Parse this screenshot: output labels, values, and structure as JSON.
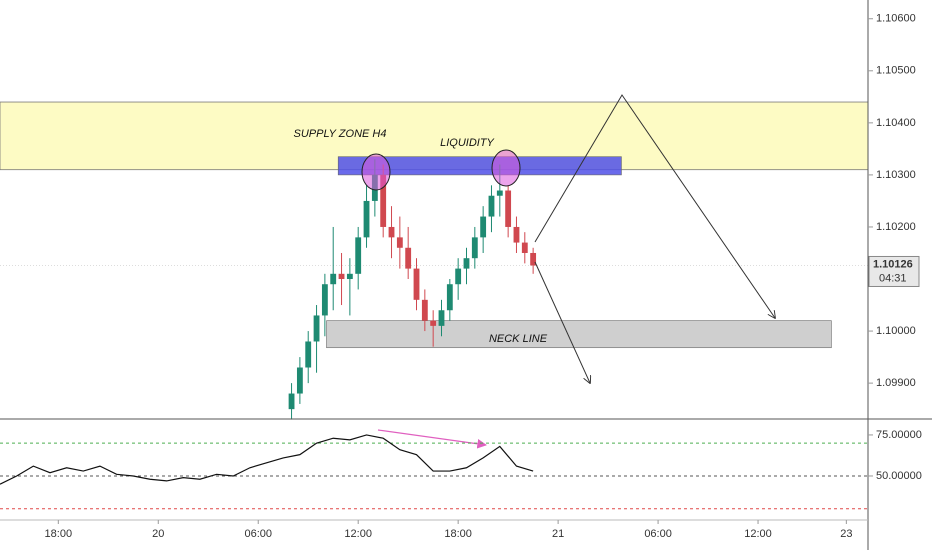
{
  "chart_data": [
    {
      "type": "candlestick",
      "x": [
        8,
        8.5,
        9,
        9.5,
        10,
        10.5,
        11,
        11.5,
        12,
        12.5,
        13,
        13.5,
        14,
        14.5,
        15,
        15.5,
        16,
        16.5,
        17,
        17.5,
        18,
        18.5,
        19,
        19.5,
        20,
        20.5,
        21,
        21.5,
        22,
        22.5
      ],
      "open": [
        1.0985,
        1.0988,
        1.0993,
        1.0998,
        1.1003,
        1.1009,
        1.1011,
        1.101,
        1.1011,
        1.1018,
        1.1025,
        1.103,
        1.102,
        1.1018,
        1.1016,
        1.1012,
        1.1006,
        1.1002,
        1.1001,
        1.1004,
        1.1009,
        1.1012,
        1.1014,
        1.1018,
        1.1022,
        1.1026,
        1.1027,
        1.102,
        1.1017,
        1.1015
      ],
      "high": [
        1.099,
        1.0995,
        1.1,
        1.1005,
        1.1011,
        1.102,
        1.1015,
        1.1014,
        1.102,
        1.1028,
        1.1033,
        1.1032,
        1.1024,
        1.1022,
        1.102,
        1.1014,
        1.1008,
        1.1004,
        1.1006,
        1.101,
        1.1014,
        1.1016,
        1.102,
        1.1024,
        1.1028,
        1.1032,
        1.1028,
        1.1022,
        1.1019,
        1.1016
      ],
      "low": [
        1.0983,
        1.0986,
        1.099,
        1.0992,
        1.0999,
        1.1004,
        1.1005,
        1.1003,
        1.1008,
        1.1016,
        1.1022,
        1.1018,
        1.1014,
        1.1012,
        1.101,
        1.1004,
        1.1,
        1.0997,
        1.0999,
        1.1002,
        1.1006,
        1.1009,
        1.1012,
        1.1015,
        1.1019,
        1.1022,
        1.1018,
        1.1015,
        1.1013,
        1.1011
      ],
      "close": [
        1.0988,
        1.0993,
        1.0998,
        1.1003,
        1.1009,
        1.1011,
        1.101,
        1.1011,
        1.1018,
        1.1025,
        1.103,
        1.102,
        1.1018,
        1.1016,
        1.1012,
        1.1006,
        1.1002,
        1.1001,
        1.1004,
        1.1009,
        1.1012,
        1.1014,
        1.1018,
        1.1022,
        1.1026,
        1.1027,
        1.102,
        1.1017,
        1.1015,
        1.10126
      ],
      "up_color": "#1e8a72",
      "down_color": "#d0484f",
      "xlim": [
        -9.5,
        42.6
      ],
      "xticks": [
        {
          "value": -6,
          "label": "18:00"
        },
        {
          "value": 0,
          "label": "20"
        },
        {
          "value": 6,
          "label": "06:00"
        },
        {
          "value": 12,
          "label": "12:00"
        },
        {
          "value": 18,
          "label": "18:00"
        },
        {
          "value": 24,
          "label": "21"
        },
        {
          "value": 30,
          "label": "06:00"
        },
        {
          "value": 36,
          "label": "12:00"
        },
        {
          "value": 41.3,
          "label": "23"
        }
      ],
      "ylim": [
        1.09833,
        1.10636
      ],
      "yticks": [
        {
          "value": 1.099,
          "label": "1.09900"
        },
        {
          "value": 1.1,
          "label": "1.10000"
        },
        {
          "value": 1.102,
          "label": "1.10200"
        },
        {
          "value": 1.103,
          "label": "1.10300"
        },
        {
          "value": 1.104,
          "label": "1.10400"
        },
        {
          "value": 1.105,
          "label": "1.10500"
        },
        {
          "value": 1.106,
          "label": "1.10600"
        }
      ],
      "countdown": "04:31",
      "zones": [
        {
          "text": "SUPPLY ZONE H4",
          "range": [
            1.1031,
            1.1044
          ],
          "color": "#fdfbc4"
        },
        {
          "text": "LIQUIDITY",
          "range": [
            1.103,
            1.10335
          ],
          "xrange": [
            10.8,
            27.8
          ],
          "color": "#5050e8"
        },
        {
          "text": "NECK LINE",
          "range": [
            1.09968,
            1.1002
          ],
          "xrange": [
            10.1,
            40.4
          ],
          "color": "#cfcfcf"
        }
      ]
    },
    {
      "type": "line",
      "x": [
        -9.5,
        -8.5,
        -7.5,
        -6.5,
        -5.5,
        -4.5,
        -3.5,
        -2.5,
        -1.5,
        -0.5,
        0.5,
        1.5,
        2.5,
        3.5,
        4.5,
        5.5,
        6.5,
        7.5,
        8.5,
        9.5,
        10.5,
        11.5,
        12.5,
        13.5,
        14.5,
        15.5,
        16.5,
        17.5,
        18.5,
        19.5,
        20.5,
        21.5,
        22.5
      ],
      "values": [
        45,
        50,
        56,
        52,
        55,
        53,
        56,
        51,
        50,
        48,
        47,
        49,
        48,
        51,
        50,
        55,
        58,
        61,
        63,
        70,
        73,
        72,
        75,
        73,
        66,
        63,
        53,
        53,
        55,
        61,
        68,
        56,
        53
      ],
      "color": "#111111",
      "ylim": [
        24.4,
        84.1
      ],
      "yticks": [
        {
          "value": 75,
          "label": "75.00000"
        },
        {
          "value": 50,
          "label": "50.00000"
        }
      ],
      "levels": [
        {
          "value": 70,
          "color": "#4caf50"
        },
        {
          "value": 50,
          "color": "#555555"
        },
        {
          "value": 30,
          "color": "#e04848"
        }
      ]
    }
  ]
}
